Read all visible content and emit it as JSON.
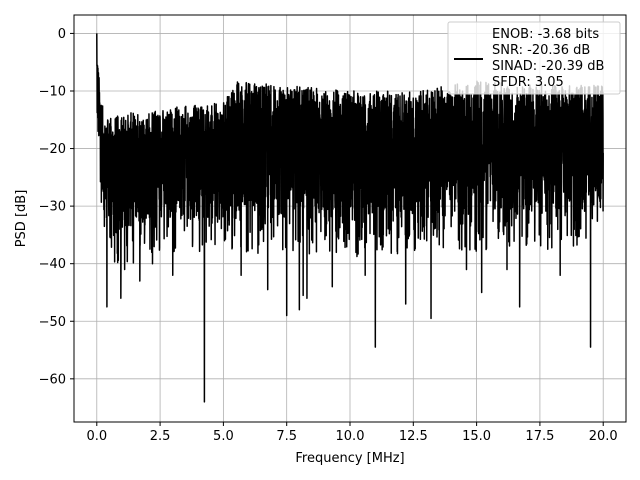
{
  "chart_data": {
    "type": "line",
    "xlabel": "Frequency [MHz]",
    "ylabel": "PSD [dB]",
    "xlim": [
      -0.9,
      20.9
    ],
    "ylim": [
      -67.5,
      3.2
    ],
    "xticks": [
      0.0,
      2.5,
      5.0,
      7.5,
      10.0,
      12.5,
      15.0,
      17.5,
      20.0
    ],
    "xtick_labels": [
      "0.0",
      "2.5",
      "5.0",
      "7.5",
      "10.0",
      "12.5",
      "15.0",
      "17.5",
      "20.0"
    ],
    "yticks": [
      0,
      -10,
      -20,
      -30,
      -40,
      -50,
      -60
    ],
    "ytick_labels": [
      "0",
      "−10",
      "−20",
      "−30",
      "−40",
      "−50",
      "−60"
    ],
    "grid": true,
    "legend_position": "top-right",
    "legend": [
      "ENOB: -3.68 bits",
      "SNR: -20.36 dB",
      "SINAD: -20.39 dB",
      "SFDR: 3.05"
    ],
    "series": [
      {
        "color": "#000000",
        "x_range": [
          0,
          20
        ],
        "envelope": {
          "upper": [
            [
              0,
              0
            ],
            [
              0.05,
              -5
            ],
            [
              0.1,
              -8
            ],
            [
              0.3,
              -15
            ],
            [
              1.0,
              -14
            ],
            [
              2.5,
              -13
            ],
            [
              5.0,
              -12
            ],
            [
              5.5,
              -8
            ],
            [
              7.5,
              -9
            ],
            [
              10,
              -10
            ],
            [
              12.5,
              -10
            ],
            [
              15,
              -8
            ],
            [
              17.5,
              -9
            ],
            [
              20,
              -9
            ]
          ],
          "lower": [
            [
              0,
              -17
            ],
            [
              0.3,
              -32
            ],
            [
              1.0,
              -35
            ],
            [
              2.5,
              -32
            ],
            [
              5.0,
              -33
            ],
            [
              7.5,
              -32
            ],
            [
              10,
              -33
            ],
            [
              12.5,
              -32
            ],
            [
              15,
              -32
            ],
            [
              17.5,
              -32
            ],
            [
              20,
              -30
            ]
          ]
        },
        "dips": [
          [
            0.4,
            -47.5
          ],
          [
            0.95,
            -46
          ],
          [
            1.1,
            -41
          ],
          [
            4.25,
            -64
          ],
          [
            6.75,
            -44.5
          ],
          [
            7.5,
            -49
          ],
          [
            8.0,
            -48
          ],
          [
            8.15,
            -45.5
          ],
          [
            8.3,
            -46
          ],
          [
            11.0,
            -54.5
          ],
          [
            12.2,
            -47
          ],
          [
            13.2,
            -49.5
          ],
          [
            15.2,
            -45
          ],
          [
            16.7,
            -47.5
          ],
          [
            19.5,
            -54.5
          ],
          [
            3.0,
            -42
          ],
          [
            1.7,
            -43
          ],
          [
            9.3,
            -44
          ],
          [
            14.6,
            -41
          ],
          [
            18.3,
            -42
          ],
          [
            2.2,
            -40
          ],
          [
            5.7,
            -42
          ],
          [
            10.6,
            -42
          ],
          [
            16.2,
            -41
          ]
        ]
      }
    ]
  }
}
